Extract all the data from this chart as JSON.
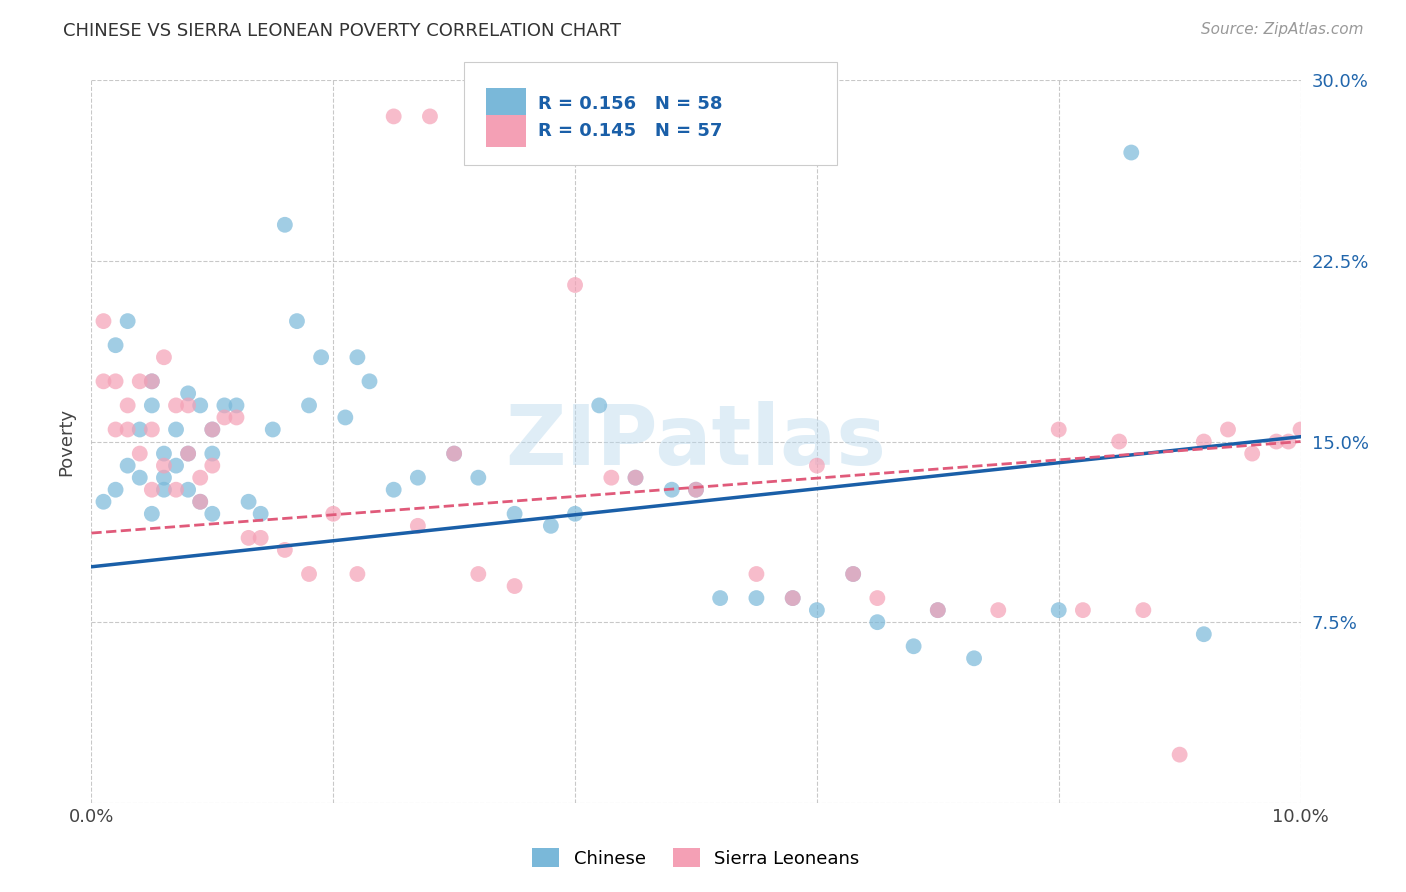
{
  "title": "CHINESE VS SIERRA LEONEAN POVERTY CORRELATION CHART",
  "source": "Source: ZipAtlas.com",
  "ylabel": "Poverty",
  "xlim": [
    0.0,
    0.1
  ],
  "ylim": [
    0.0,
    0.3
  ],
  "xticks": [
    0.0,
    0.02,
    0.04,
    0.06,
    0.08,
    0.1
  ],
  "yticks": [
    0.0,
    0.075,
    0.15,
    0.225,
    0.3
  ],
  "ytick_labels_right": [
    "",
    "7.5%",
    "15.0%",
    "22.5%",
    "30.0%"
  ],
  "xtick_labels": [
    "0.0%",
    "",
    "",
    "",
    "",
    "10.0%"
  ],
  "chinese_color": "#7ab8d9",
  "sierra_color": "#f4a0b5",
  "chinese_line_color": "#1a5fa8",
  "sierra_line_color": "#e05a7a",
  "watermark_text": "ZIPatlas",
  "legend_r1": "R = 0.156",
  "legend_n1": "N = 58",
  "legend_r2": "R = 0.145",
  "legend_n2": "N = 57",
  "chinese_x": [
    0.001,
    0.002,
    0.002,
    0.003,
    0.003,
    0.004,
    0.004,
    0.005,
    0.005,
    0.005,
    0.006,
    0.006,
    0.006,
    0.007,
    0.007,
    0.008,
    0.008,
    0.008,
    0.009,
    0.009,
    0.01,
    0.01,
    0.01,
    0.011,
    0.012,
    0.013,
    0.014,
    0.015,
    0.016,
    0.017,
    0.018,
    0.019,
    0.021,
    0.022,
    0.023,
    0.025,
    0.027,
    0.03,
    0.032,
    0.035,
    0.038,
    0.04,
    0.042,
    0.045,
    0.048,
    0.05,
    0.052,
    0.055,
    0.058,
    0.06,
    0.063,
    0.065,
    0.068,
    0.07,
    0.073,
    0.08,
    0.086,
    0.092
  ],
  "chinese_y": [
    0.125,
    0.19,
    0.13,
    0.14,
    0.2,
    0.155,
    0.135,
    0.165,
    0.12,
    0.175,
    0.13,
    0.145,
    0.135,
    0.14,
    0.155,
    0.13,
    0.145,
    0.17,
    0.125,
    0.165,
    0.12,
    0.145,
    0.155,
    0.165,
    0.165,
    0.125,
    0.12,
    0.155,
    0.24,
    0.2,
    0.165,
    0.185,
    0.16,
    0.185,
    0.175,
    0.13,
    0.135,
    0.145,
    0.135,
    0.12,
    0.115,
    0.12,
    0.165,
    0.135,
    0.13,
    0.13,
    0.085,
    0.085,
    0.085,
    0.08,
    0.095,
    0.075,
    0.065,
    0.08,
    0.06,
    0.08,
    0.27,
    0.07
  ],
  "sierra_x": [
    0.001,
    0.001,
    0.002,
    0.002,
    0.003,
    0.003,
    0.004,
    0.004,
    0.005,
    0.005,
    0.005,
    0.006,
    0.006,
    0.007,
    0.007,
    0.008,
    0.008,
    0.009,
    0.009,
    0.01,
    0.01,
    0.011,
    0.012,
    0.013,
    0.014,
    0.016,
    0.018,
    0.02,
    0.022,
    0.025,
    0.027,
    0.028,
    0.03,
    0.032,
    0.035,
    0.04,
    0.043,
    0.045,
    0.05,
    0.055,
    0.058,
    0.06,
    0.063,
    0.065,
    0.07,
    0.075,
    0.08,
    0.082,
    0.085,
    0.087,
    0.09,
    0.092,
    0.094,
    0.096,
    0.098,
    0.099,
    0.1
  ],
  "sierra_y": [
    0.2,
    0.175,
    0.155,
    0.175,
    0.155,
    0.165,
    0.145,
    0.175,
    0.13,
    0.175,
    0.155,
    0.14,
    0.185,
    0.13,
    0.165,
    0.145,
    0.165,
    0.125,
    0.135,
    0.14,
    0.155,
    0.16,
    0.16,
    0.11,
    0.11,
    0.105,
    0.095,
    0.12,
    0.095,
    0.285,
    0.115,
    0.285,
    0.145,
    0.095,
    0.09,
    0.215,
    0.135,
    0.135,
    0.13,
    0.095,
    0.085,
    0.14,
    0.095,
    0.085,
    0.08,
    0.08,
    0.155,
    0.08,
    0.15,
    0.08,
    0.02,
    0.15,
    0.155,
    0.145,
    0.15,
    0.15,
    0.155
  ]
}
